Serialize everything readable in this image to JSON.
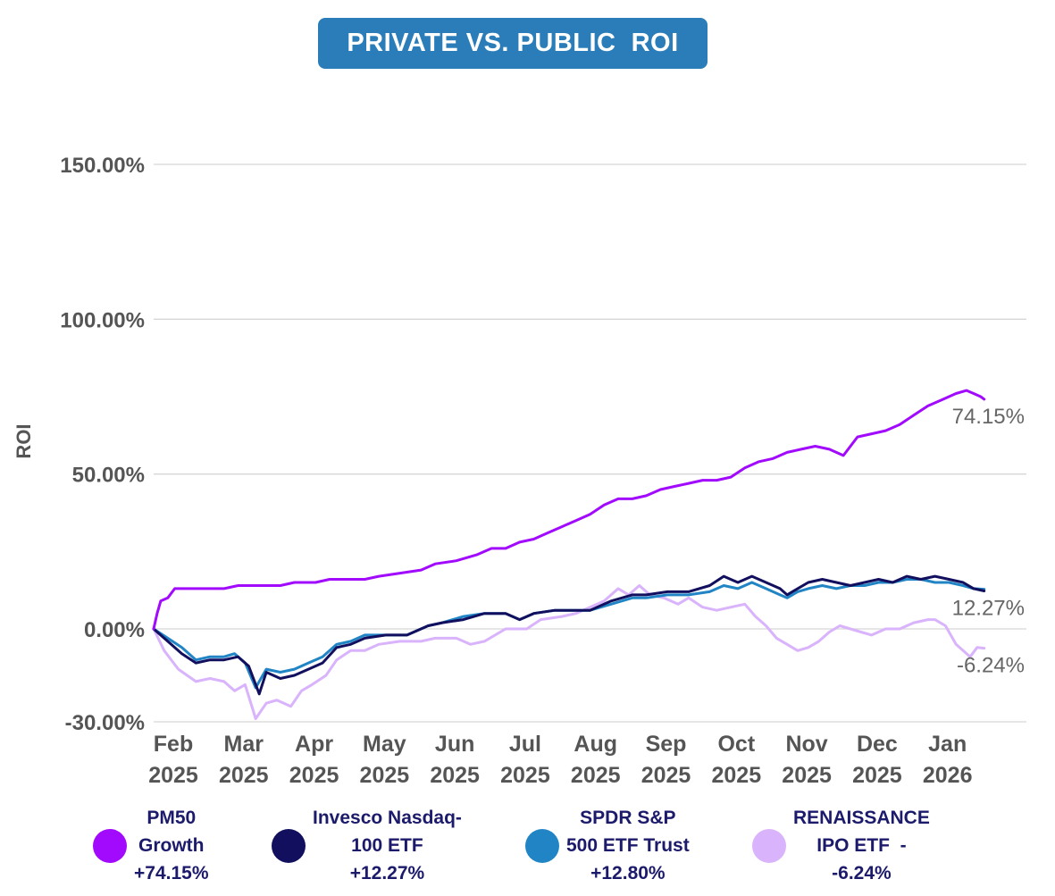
{
  "header": {
    "title": "PRIVATE VS. PUBLIC  ROI"
  },
  "legend": [
    {
      "lines": [
        "PM50",
        "Growth",
        "+74.15%"
      ],
      "color": "#a10afc"
    },
    {
      "lines": [
        "Invesco Nasdaq-",
        "100 ETF",
        "+12.27%"
      ],
      "color": "#12105e"
    },
    {
      "lines": [
        "SPDR S&P",
        "500 ETF Trust",
        "+12.80%"
      ],
      "color": "#2185c5"
    },
    {
      "lines": [
        "RENAISSANCE",
        "IPO ETF  -",
        "-6.24%"
      ],
      "color": "#d9b3fb"
    }
  ],
  "chart_data": {
    "type": "line",
    "title": "PRIVATE VS. PUBLIC  ROI",
    "xlabel": "",
    "ylabel": "ROI",
    "ylim": [
      -30,
      150
    ],
    "grid": true,
    "y_ticks": [
      {
        "value": 150,
        "label": "150.00%"
      },
      {
        "value": 100,
        "label": "100.00%"
      },
      {
        "value": 50,
        "label": "50.00%"
      },
      {
        "value": 0,
        "label": "0.00%"
      },
      {
        "value": -30,
        "label": "-30.00%"
      }
    ],
    "x_range": [
      0,
      12.4
    ],
    "x_ticks": [
      {
        "value": 0,
        "label": [
          "Feb",
          "2025"
        ]
      },
      {
        "value": 1,
        "label": [
          "Mar",
          "2025"
        ]
      },
      {
        "value": 2,
        "label": [
          "Apr",
          "2025"
        ]
      },
      {
        "value": 3,
        "label": [
          "May",
          "2025"
        ]
      },
      {
        "value": 4,
        "label": [
          "Jun",
          "2025"
        ]
      },
      {
        "value": 5,
        "label": [
          "Jul",
          "2025"
        ]
      },
      {
        "value": 6,
        "label": [
          "Aug",
          "2025"
        ]
      },
      {
        "value": 7,
        "label": [
          "Sep",
          "2025"
        ]
      },
      {
        "value": 8,
        "label": [
          "Oct",
          "2025"
        ]
      },
      {
        "value": 9,
        "label": [
          "Nov",
          "2025"
        ]
      },
      {
        "value": 10,
        "label": [
          "Dec",
          "2025"
        ]
      },
      {
        "value": 11,
        "label": [
          "Jan",
          "2026"
        ]
      }
    ],
    "series": [
      {
        "name": "RENAISSANCE IPO ETF",
        "color": "#d9b3fb",
        "end_label": "-6.24%",
        "points": [
          [
            0,
            0
          ],
          [
            0.15,
            -7
          ],
          [
            0.35,
            -13
          ],
          [
            0.6,
            -17
          ],
          [
            0.8,
            -16
          ],
          [
            1.0,
            -17
          ],
          [
            1.15,
            -20
          ],
          [
            1.3,
            -18
          ],
          [
            1.45,
            -29
          ],
          [
            1.6,
            -24
          ],
          [
            1.75,
            -23
          ],
          [
            1.95,
            -25
          ],
          [
            2.1,
            -20
          ],
          [
            2.25,
            -18
          ],
          [
            2.45,
            -15
          ],
          [
            2.6,
            -10
          ],
          [
            2.8,
            -7
          ],
          [
            3.0,
            -7
          ],
          [
            3.2,
            -5
          ],
          [
            3.5,
            -4
          ],
          [
            3.8,
            -4
          ],
          [
            4.0,
            -3
          ],
          [
            4.3,
            -3
          ],
          [
            4.5,
            -5
          ],
          [
            4.7,
            -4
          ],
          [
            5.0,
            0
          ],
          [
            5.3,
            0
          ],
          [
            5.5,
            3
          ],
          [
            5.8,
            4
          ],
          [
            6.0,
            5
          ],
          [
            6.2,
            7
          ],
          [
            6.4,
            9
          ],
          [
            6.6,
            13
          ],
          [
            6.75,
            11
          ],
          [
            6.9,
            14
          ],
          [
            7.05,
            11
          ],
          [
            7.25,
            10
          ],
          [
            7.45,
            8
          ],
          [
            7.6,
            10
          ],
          [
            7.8,
            7
          ],
          [
            8.0,
            6
          ],
          [
            8.2,
            7
          ],
          [
            8.4,
            8
          ],
          [
            8.55,
            4
          ],
          [
            8.7,
            1
          ],
          [
            8.85,
            -3
          ],
          [
            9.0,
            -5
          ],
          [
            9.15,
            -7
          ],
          [
            9.3,
            -6
          ],
          [
            9.45,
            -4
          ],
          [
            9.6,
            -1
          ],
          [
            9.75,
            1
          ],
          [
            9.9,
            0
          ],
          [
            10.05,
            -1
          ],
          [
            10.2,
            -2
          ],
          [
            10.4,
            0
          ],
          [
            10.6,
            0
          ],
          [
            10.8,
            2
          ],
          [
            11.0,
            3
          ],
          [
            11.1,
            3
          ],
          [
            11.25,
            1
          ],
          [
            11.4,
            -5
          ],
          [
            11.5,
            -7
          ],
          [
            11.6,
            -9
          ],
          [
            11.7,
            -6
          ],
          [
            11.8,
            -6.24
          ]
        ]
      },
      {
        "name": "SPDR S&P 500 ETF Trust",
        "color": "#2185c5",
        "end_label": "",
        "points": [
          [
            0,
            0
          ],
          [
            0.2,
            -3
          ],
          [
            0.4,
            -6
          ],
          [
            0.6,
            -10
          ],
          [
            0.8,
            -9
          ],
          [
            1.0,
            -9
          ],
          [
            1.15,
            -8
          ],
          [
            1.3,
            -11
          ],
          [
            1.45,
            -19
          ],
          [
            1.6,
            -13
          ],
          [
            1.8,
            -14
          ],
          [
            2.0,
            -13
          ],
          [
            2.2,
            -11
          ],
          [
            2.4,
            -9
          ],
          [
            2.6,
            -5
          ],
          [
            2.8,
            -4
          ],
          [
            3.0,
            -2
          ],
          [
            3.3,
            -2
          ],
          [
            3.6,
            -2
          ],
          [
            3.9,
            1
          ],
          [
            4.1,
            2
          ],
          [
            4.4,
            4
          ],
          [
            4.7,
            5
          ],
          [
            5.0,
            5
          ],
          [
            5.2,
            3
          ],
          [
            5.4,
            5
          ],
          [
            5.7,
            6
          ],
          [
            6.0,
            6
          ],
          [
            6.2,
            6
          ],
          [
            6.5,
            8
          ],
          [
            6.8,
            10
          ],
          [
            7.0,
            10
          ],
          [
            7.3,
            11
          ],
          [
            7.6,
            11
          ],
          [
            7.9,
            12
          ],
          [
            8.1,
            14
          ],
          [
            8.3,
            13
          ],
          [
            8.5,
            15
          ],
          [
            8.7,
            13
          ],
          [
            8.9,
            11
          ],
          [
            9.0,
            10
          ],
          [
            9.15,
            12
          ],
          [
            9.3,
            13
          ],
          [
            9.5,
            14
          ],
          [
            9.7,
            13
          ],
          [
            9.9,
            14
          ],
          [
            10.1,
            14
          ],
          [
            10.3,
            15
          ],
          [
            10.5,
            15
          ],
          [
            10.7,
            16
          ],
          [
            10.9,
            16
          ],
          [
            11.1,
            15
          ],
          [
            11.3,
            15
          ],
          [
            11.5,
            14
          ],
          [
            11.65,
            13
          ],
          [
            11.8,
            12.8
          ]
        ]
      },
      {
        "name": "Invesco Nasdaq-100 ETF",
        "color": "#12105e",
        "end_label": "12.27%",
        "points": [
          [
            0,
            0
          ],
          [
            0.2,
            -4
          ],
          [
            0.4,
            -8
          ],
          [
            0.6,
            -11
          ],
          [
            0.8,
            -10
          ],
          [
            1.0,
            -10
          ],
          [
            1.2,
            -9
          ],
          [
            1.35,
            -12
          ],
          [
            1.5,
            -21
          ],
          [
            1.6,
            -14
          ],
          [
            1.8,
            -16
          ],
          [
            2.0,
            -15
          ],
          [
            2.2,
            -13
          ],
          [
            2.4,
            -11
          ],
          [
            2.6,
            -6
          ],
          [
            2.8,
            -5
          ],
          [
            3.0,
            -3
          ],
          [
            3.3,
            -2
          ],
          [
            3.6,
            -2
          ],
          [
            3.9,
            1
          ],
          [
            4.1,
            2
          ],
          [
            4.4,
            3
          ],
          [
            4.7,
            5
          ],
          [
            5.0,
            5
          ],
          [
            5.2,
            3
          ],
          [
            5.4,
            5
          ],
          [
            5.7,
            6
          ],
          [
            6.0,
            6
          ],
          [
            6.2,
            6
          ],
          [
            6.5,
            9
          ],
          [
            6.8,
            11
          ],
          [
            7.0,
            11
          ],
          [
            7.3,
            12
          ],
          [
            7.6,
            12
          ],
          [
            7.9,
            14
          ],
          [
            8.1,
            17
          ],
          [
            8.3,
            15
          ],
          [
            8.5,
            17
          ],
          [
            8.7,
            15
          ],
          [
            8.9,
            13
          ],
          [
            9.0,
            11
          ],
          [
            9.15,
            13
          ],
          [
            9.3,
            15
          ],
          [
            9.5,
            16
          ],
          [
            9.7,
            15
          ],
          [
            9.9,
            14
          ],
          [
            10.1,
            15
          ],
          [
            10.3,
            16
          ],
          [
            10.5,
            15
          ],
          [
            10.7,
            17
          ],
          [
            10.9,
            16
          ],
          [
            11.1,
            17
          ],
          [
            11.3,
            16
          ],
          [
            11.5,
            15
          ],
          [
            11.65,
            13
          ],
          [
            11.8,
            12.27
          ]
        ]
      },
      {
        "name": "PM50 Growth",
        "color": "#a10afc",
        "end_label": "74.15%",
        "points": [
          [
            0,
            0
          ],
          [
            0.05,
            5
          ],
          [
            0.1,
            9
          ],
          [
            0.2,
            10
          ],
          [
            0.3,
            13
          ],
          [
            0.5,
            13
          ],
          [
            0.8,
            13
          ],
          [
            1.0,
            13
          ],
          [
            1.2,
            14
          ],
          [
            1.5,
            14
          ],
          [
            1.8,
            14
          ],
          [
            2.0,
            15
          ],
          [
            2.3,
            15
          ],
          [
            2.5,
            16
          ],
          [
            2.8,
            16
          ],
          [
            3.0,
            16
          ],
          [
            3.2,
            17
          ],
          [
            3.5,
            18
          ],
          [
            3.8,
            19
          ],
          [
            4.0,
            21
          ],
          [
            4.3,
            22
          ],
          [
            4.6,
            24
          ],
          [
            4.8,
            26
          ],
          [
            5.0,
            26
          ],
          [
            5.2,
            28
          ],
          [
            5.4,
            29
          ],
          [
            5.6,
            31
          ],
          [
            5.8,
            33
          ],
          [
            6.0,
            35
          ],
          [
            6.2,
            37
          ],
          [
            6.4,
            40
          ],
          [
            6.6,
            42
          ],
          [
            6.8,
            42
          ],
          [
            7.0,
            43
          ],
          [
            7.2,
            45
          ],
          [
            7.4,
            46
          ],
          [
            7.6,
            47
          ],
          [
            7.8,
            48
          ],
          [
            8.0,
            48
          ],
          [
            8.2,
            49
          ],
          [
            8.4,
            52
          ],
          [
            8.6,
            54
          ],
          [
            8.8,
            55
          ],
          [
            9.0,
            57
          ],
          [
            9.2,
            58
          ],
          [
            9.4,
            59
          ],
          [
            9.6,
            58
          ],
          [
            9.8,
            56
          ],
          [
            10.0,
            62
          ],
          [
            10.2,
            63
          ],
          [
            10.4,
            64
          ],
          [
            10.6,
            66
          ],
          [
            10.8,
            69
          ],
          [
            11.0,
            72
          ],
          [
            11.2,
            74
          ],
          [
            11.4,
            76
          ],
          [
            11.55,
            77
          ],
          [
            11.65,
            76
          ],
          [
            11.75,
            75
          ],
          [
            11.8,
            74.15
          ]
        ]
      }
    ]
  }
}
